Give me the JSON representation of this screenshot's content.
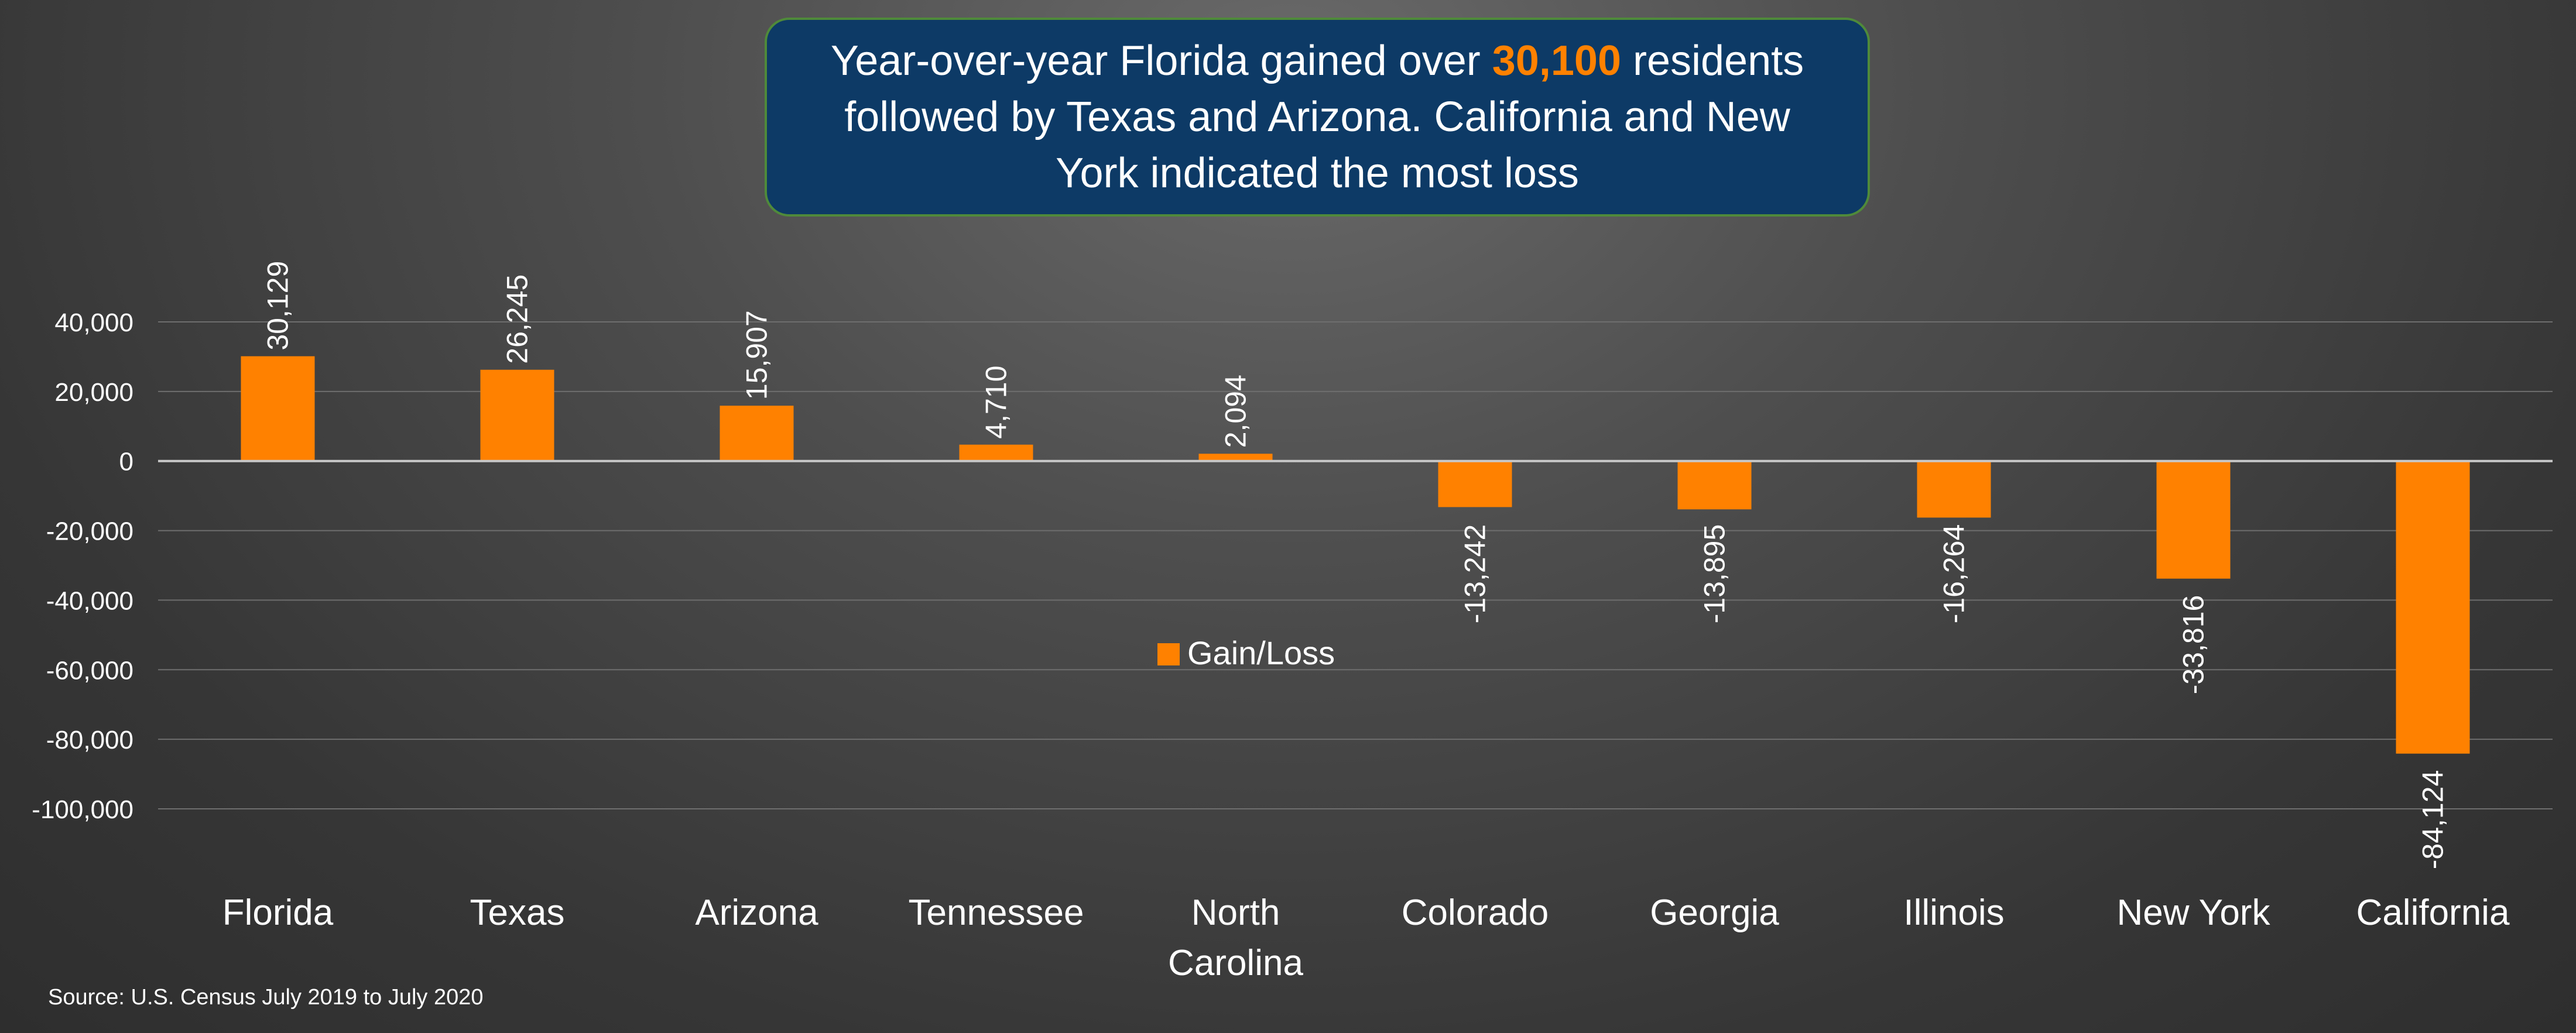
{
  "callout": {
    "text_before": "Year-over-year Florida gained over ",
    "highlight": "30,100",
    "text_after": " residents followed by Texas and Arizona.  California and New York indicated the most loss",
    "highlight_color": "#FF8100",
    "box_color": "#0D3A66",
    "border_color": "#4F8A3A"
  },
  "source": "Source: U.S. Census July 2019 to July 2020",
  "chart_data": {
    "type": "bar",
    "categories": [
      "Florida",
      "Texas",
      "Arizona",
      "Tennessee",
      "North Carolina",
      "Colorado",
      "Georgia",
      "Illinois",
      "New York",
      "California"
    ],
    "series": [
      {
        "name": "Gain/Loss",
        "values": [
          30129,
          26245,
          15907,
          4710,
          2094,
          -13242,
          -13895,
          -16264,
          -33816,
          -84124
        ],
        "labels": [
          "30,129",
          "26,245",
          "15,907",
          "4,710",
          "2,094",
          "-13,242",
          "-13,895",
          "-16,264",
          "-33,816",
          "-84,124"
        ],
        "color": "#FF8100"
      }
    ],
    "yticks": [
      40000,
      20000,
      0,
      -20000,
      -40000,
      -60000,
      -80000,
      -100000
    ],
    "ytick_labels": [
      "40,000",
      "20,000",
      "0",
      "-20,000",
      "-40,000",
      "-60,000",
      "-80,000",
      "-100,000"
    ],
    "ylim": [
      -100000,
      40000
    ],
    "grid": true,
    "legend": "center"
  }
}
